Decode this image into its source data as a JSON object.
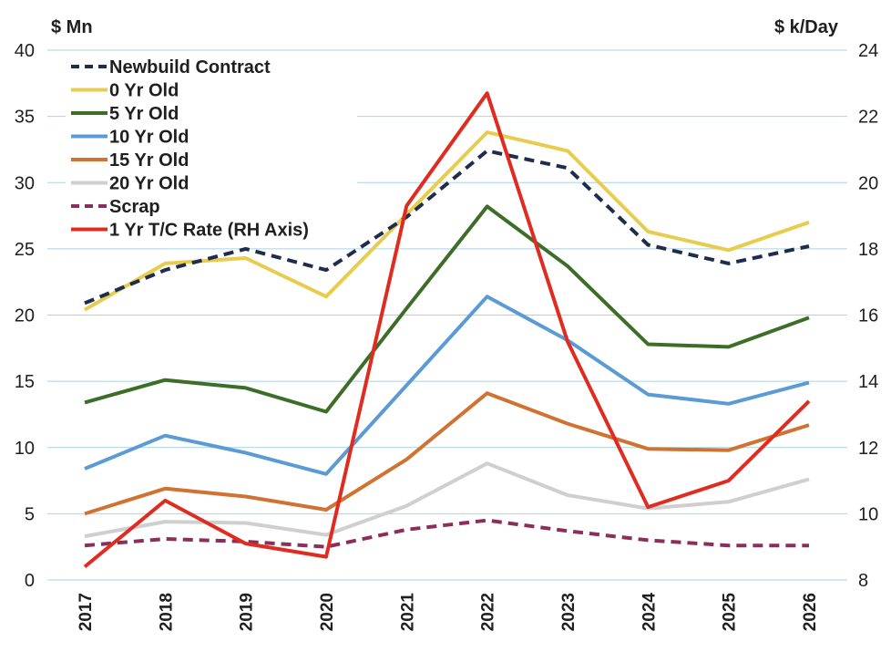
{
  "chart_data": {
    "type": "line",
    "left_axis_unit": "$ Mn",
    "right_axis_unit": "$ k/Day",
    "categories": [
      "2017",
      "2018",
      "2019",
      "2020",
      "2021",
      "2022",
      "2023",
      "2024",
      "2025",
      "2026"
    ],
    "ylim_left": [
      0,
      40
    ],
    "yticks_left": [
      "0",
      "5",
      "10",
      "15",
      "20",
      "25",
      "30",
      "35",
      "40"
    ],
    "ylim_right": [
      8,
      24
    ],
    "yticks_right": [
      "8",
      "10",
      "12",
      "14",
      "16",
      "18",
      "20",
      "22",
      "24"
    ],
    "grid": true,
    "legend_position": "top-left",
    "series": [
      {
        "name": "Newbuild Contract",
        "axis": "left",
        "color": "#1f2d4d",
        "style": "dashed",
        "values": [
          20.9,
          23.4,
          25.0,
          23.4,
          27.4,
          32.4,
          31.1,
          25.3,
          23.9,
          25.2
        ]
      },
      {
        "name": "0 Yr Old",
        "axis": "left",
        "color": "#e8cc4e",
        "style": "solid",
        "values": [
          20.4,
          23.9,
          24.3,
          21.4,
          27.6,
          33.8,
          32.4,
          26.3,
          24.9,
          27.0
        ]
      },
      {
        "name": "5 Yr Old",
        "axis": "left",
        "color": "#3c6e28",
        "style": "solid",
        "values": [
          13.4,
          15.1,
          14.5,
          12.7,
          20.5,
          28.2,
          23.7,
          17.8,
          17.6,
          19.8
        ]
      },
      {
        "name": "10 Yr Old",
        "axis": "left",
        "color": "#5b9bd5",
        "style": "solid",
        "values": [
          8.4,
          10.9,
          9.6,
          8.0,
          14.7,
          21.4,
          18.1,
          14.0,
          13.3,
          14.9
        ]
      },
      {
        "name": "15 Yr Old",
        "axis": "left",
        "color": "#d07232",
        "style": "solid",
        "values": [
          5.0,
          6.9,
          6.3,
          5.3,
          9.1,
          14.1,
          11.8,
          9.9,
          9.8,
          11.7
        ]
      },
      {
        "name": "20 Yr Old",
        "axis": "left",
        "color": "#cfcfcf",
        "style": "solid",
        "values": [
          3.3,
          4.4,
          4.3,
          3.4,
          5.6,
          8.8,
          6.4,
          5.4,
          5.9,
          7.6
        ]
      },
      {
        "name": "Scrap",
        "axis": "left",
        "color": "#8b2f5a",
        "style": "dashed",
        "values": [
          2.6,
          3.1,
          2.9,
          2.5,
          3.8,
          4.5,
          3.7,
          3.0,
          2.6,
          2.6
        ]
      },
      {
        "name": "1 Yr T/C Rate (RH Axis)",
        "axis": "right",
        "color": "#e02b20",
        "style": "solid",
        "values": [
          8.4,
          10.4,
          9.1,
          8.7,
          19.3,
          22.7,
          15.2,
          10.2,
          11.0,
          13.4
        ]
      }
    ]
  }
}
